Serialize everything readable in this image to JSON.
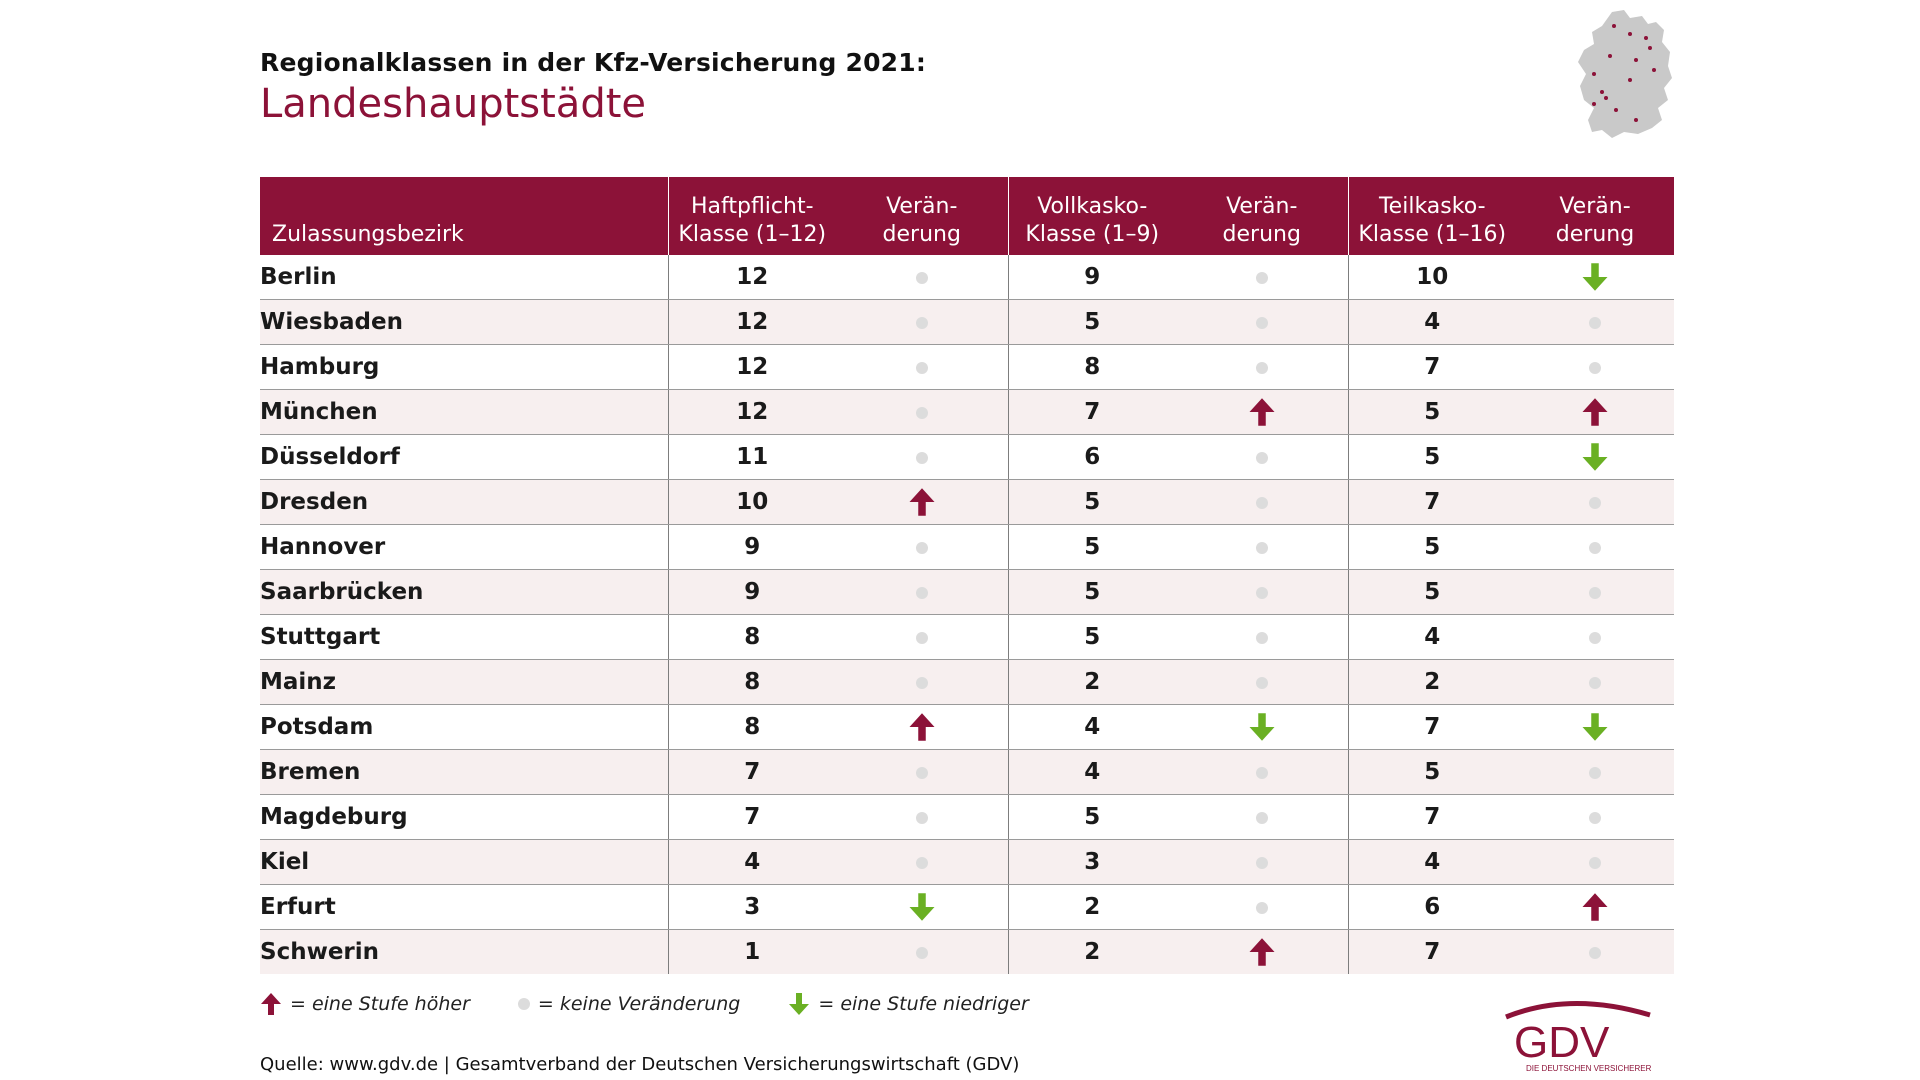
{
  "title": {
    "line1": "Regionalklassen in der Kfz-Versicherung 2021:",
    "line2": "Landeshauptstädte"
  },
  "colors": {
    "brand": "#8c1238",
    "up": "#8c1238",
    "down": "#6ab023",
    "none": "#dcdcdc"
  },
  "table": {
    "headers": [
      "Zulassungsbezirk",
      "Haftpflicht-\nKlasse (1–12)",
      "Verän-\nderung",
      "Vollkasko-\nKlasse (1–9)",
      "Verän-\nderung",
      "Teilkasko-\nKlasse (1–16)",
      "Verän-\nderung"
    ],
    "rows": [
      {
        "district": "Berlin",
        "hp": "12",
        "hp_change": "none",
        "vk": "9",
        "vk_change": "none",
        "tk": "10",
        "tk_change": "down"
      },
      {
        "district": "Wiesbaden",
        "hp": "12",
        "hp_change": "none",
        "vk": "5",
        "vk_change": "none",
        "tk": "4",
        "tk_change": "none"
      },
      {
        "district": "Hamburg",
        "hp": "12",
        "hp_change": "none",
        "vk": "8",
        "vk_change": "none",
        "tk": "7",
        "tk_change": "none"
      },
      {
        "district": "München",
        "hp": "12",
        "hp_change": "none",
        "vk": "7",
        "vk_change": "up",
        "tk": "5",
        "tk_change": "up"
      },
      {
        "district": "Düsseldorf",
        "hp": "11",
        "hp_change": "none",
        "vk": "6",
        "vk_change": "none",
        "tk": "5",
        "tk_change": "down"
      },
      {
        "district": "Dresden",
        "hp": "10",
        "hp_change": "up",
        "vk": "5",
        "vk_change": "none",
        "tk": "7",
        "tk_change": "none"
      },
      {
        "district": "Hannover",
        "hp": "9",
        "hp_change": "none",
        "vk": "5",
        "vk_change": "none",
        "tk": "5",
        "tk_change": "none"
      },
      {
        "district": "Saarbrücken",
        "hp": "9",
        "hp_change": "none",
        "vk": "5",
        "vk_change": "none",
        "tk": "5",
        "tk_change": "none"
      },
      {
        "district": "Stuttgart",
        "hp": "8",
        "hp_change": "none",
        "vk": "5",
        "vk_change": "none",
        "tk": "4",
        "tk_change": "none"
      },
      {
        "district": "Mainz",
        "hp": "8",
        "hp_change": "none",
        "vk": "2",
        "vk_change": "none",
        "tk": "2",
        "tk_change": "none"
      },
      {
        "district": "Potsdam",
        "hp": "8",
        "hp_change": "up",
        "vk": "4",
        "vk_change": "down",
        "tk": "7",
        "tk_change": "down"
      },
      {
        "district": "Bremen",
        "hp": "7",
        "hp_change": "none",
        "vk": "4",
        "vk_change": "none",
        "tk": "5",
        "tk_change": "none"
      },
      {
        "district": "Magdeburg",
        "hp": "7",
        "hp_change": "none",
        "vk": "5",
        "vk_change": "none",
        "tk": "7",
        "tk_change": "none"
      },
      {
        "district": "Kiel",
        "hp": "4",
        "hp_change": "none",
        "vk": "3",
        "vk_change": "none",
        "tk": "4",
        "tk_change": "none"
      },
      {
        "district": "Erfurt",
        "hp": "3",
        "hp_change": "down",
        "vk": "2",
        "vk_change": "none",
        "tk": "6",
        "tk_change": "up"
      },
      {
        "district": "Schwerin",
        "hp": "1",
        "hp_change": "none",
        "vk": "2",
        "vk_change": "up",
        "tk": "7",
        "tk_change": "none"
      }
    ]
  },
  "legend": {
    "up": "= eine Stufe höher",
    "none": "= keine Veränderung",
    "down": "= eine Stufe niedriger"
  },
  "source": "Quelle: www.gdv.de | Gesamtverband der Deutschen Versicherungswirtschaft (GDV)",
  "logo": {
    "text": "GDV",
    "tagline": "DIE DEUTSCHEN VERSICHERER"
  },
  "icons": {
    "map": "germany-map-icon",
    "up": "arrow-up-icon",
    "down": "arrow-down-icon",
    "none": "dot-icon"
  }
}
